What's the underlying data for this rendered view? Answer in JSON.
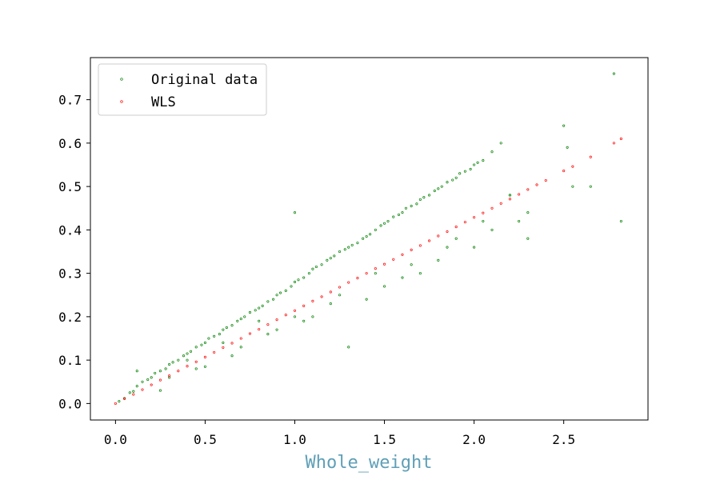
{
  "chart_data": {
    "type": "scatter",
    "title": "",
    "xlabel": "Whole_weight",
    "ylabel": "",
    "xlim": [
      -0.14,
      2.97
    ],
    "ylim": [
      -0.038,
      0.797
    ],
    "x_ticks": [
      "0.0",
      "0.5",
      "1.0",
      "1.5",
      "2.0",
      "2.5"
    ],
    "y_ticks": [
      "0.0",
      "0.1",
      "0.2",
      "0.3",
      "0.4",
      "0.5",
      "0.6",
      "0.7"
    ],
    "grid": false,
    "legend_position": "top-left",
    "series": [
      {
        "name": "Original data",
        "color": "#008000",
        "marker": "circle-hollow",
        "x": [
          0.02,
          0.05,
          0.08,
          0.1,
          0.12,
          0.15,
          0.18,
          0.2,
          0.22,
          0.25,
          0.28,
          0.3,
          0.32,
          0.35,
          0.38,
          0.4,
          0.42,
          0.45,
          0.48,
          0.5,
          0.52,
          0.55,
          0.58,
          0.6,
          0.62,
          0.65,
          0.68,
          0.7,
          0.72,
          0.75,
          0.78,
          0.8,
          0.82,
          0.85,
          0.88,
          0.9,
          0.92,
          0.95,
          0.98,
          1.0,
          1.02,
          1.05,
          1.08,
          1.1,
          1.12,
          1.15,
          1.18,
          1.2,
          1.22,
          1.25,
          1.28,
          1.3,
          1.32,
          1.35,
          1.38,
          1.4,
          1.42,
          1.45,
          1.48,
          1.5,
          1.52,
          1.55,
          1.58,
          1.6,
          1.62,
          1.65,
          1.68,
          1.7,
          1.72,
          1.75,
          1.78,
          1.8,
          1.82,
          1.85,
          1.88,
          1.9,
          1.92,
          1.95,
          1.98,
          2.0,
          2.02,
          2.05,
          2.1,
          2.15,
          2.2,
          2.25,
          2.3,
          2.5,
          2.52,
          2.55,
          2.65,
          2.78,
          2.82,
          1.0,
          1.3,
          0.12,
          0.3,
          0.5,
          0.7,
          0.9,
          1.1,
          1.4,
          1.6,
          1.8,
          2.0,
          0.4,
          0.6,
          0.8,
          1.0,
          1.2,
          1.45,
          1.65,
          1.85,
          2.05,
          2.2,
          0.25,
          0.45,
          0.65,
          0.85,
          1.05,
          1.25,
          1.5,
          1.7,
          1.9,
          2.1,
          2.3
        ],
        "y": [
          0.005,
          0.012,
          0.025,
          0.028,
          0.04,
          0.05,
          0.055,
          0.06,
          0.07,
          0.075,
          0.08,
          0.09,
          0.095,
          0.1,
          0.11,
          0.115,
          0.12,
          0.13,
          0.135,
          0.14,
          0.15,
          0.155,
          0.16,
          0.17,
          0.175,
          0.18,
          0.19,
          0.195,
          0.2,
          0.21,
          0.215,
          0.22,
          0.225,
          0.235,
          0.24,
          0.25,
          0.255,
          0.26,
          0.27,
          0.28,
          0.285,
          0.29,
          0.3,
          0.31,
          0.315,
          0.32,
          0.33,
          0.335,
          0.34,
          0.35,
          0.355,
          0.36,
          0.365,
          0.37,
          0.38,
          0.385,
          0.39,
          0.4,
          0.41,
          0.415,
          0.42,
          0.43,
          0.435,
          0.44,
          0.45,
          0.455,
          0.46,
          0.47,
          0.475,
          0.48,
          0.49,
          0.495,
          0.5,
          0.51,
          0.515,
          0.52,
          0.53,
          0.535,
          0.54,
          0.55,
          0.555,
          0.56,
          0.58,
          0.6,
          0.48,
          0.42,
          0.38,
          0.64,
          0.59,
          0.5,
          0.5,
          0.76,
          0.42,
          0.44,
          0.13,
          0.075,
          0.06,
          0.085,
          0.13,
          0.17,
          0.2,
          0.24,
          0.29,
          0.33,
          0.36,
          0.1,
          0.14,
          0.19,
          0.2,
          0.23,
          0.3,
          0.32,
          0.36,
          0.42,
          0.48,
          0.03,
          0.08,
          0.11,
          0.16,
          0.19,
          0.25,
          0.27,
          0.3,
          0.38,
          0.4,
          0.44
        ]
      },
      {
        "name": "WLS",
        "color": "#ff0000",
        "marker": "circle-hollow",
        "x": [
          0.0,
          0.05,
          0.1,
          0.15,
          0.2,
          0.25,
          0.3,
          0.35,
          0.4,
          0.45,
          0.5,
          0.55,
          0.6,
          0.65,
          0.7,
          0.75,
          0.8,
          0.85,
          0.9,
          0.95,
          1.0,
          1.05,
          1.1,
          1.15,
          1.2,
          1.25,
          1.3,
          1.35,
          1.4,
          1.45,
          1.5,
          1.55,
          1.6,
          1.65,
          1.7,
          1.75,
          1.8,
          1.85,
          1.9,
          1.95,
          2.0,
          2.05,
          2.1,
          2.15,
          2.2,
          2.25,
          2.3,
          2.35,
          2.4,
          2.5,
          2.55,
          2.65,
          2.78,
          2.82
        ],
        "y": [
          0.0,
          0.011,
          0.021,
          0.032,
          0.043,
          0.054,
          0.064,
          0.075,
          0.086,
          0.096,
          0.107,
          0.118,
          0.129,
          0.139,
          0.15,
          0.161,
          0.171,
          0.182,
          0.193,
          0.204,
          0.214,
          0.225,
          0.236,
          0.246,
          0.257,
          0.268,
          0.279,
          0.289,
          0.3,
          0.311,
          0.321,
          0.332,
          0.343,
          0.354,
          0.364,
          0.375,
          0.386,
          0.396,
          0.407,
          0.418,
          0.429,
          0.439,
          0.45,
          0.461,
          0.471,
          0.482,
          0.493,
          0.504,
          0.514,
          0.536,
          0.546,
          0.568,
          0.6,
          0.61
        ]
      }
    ]
  }
}
